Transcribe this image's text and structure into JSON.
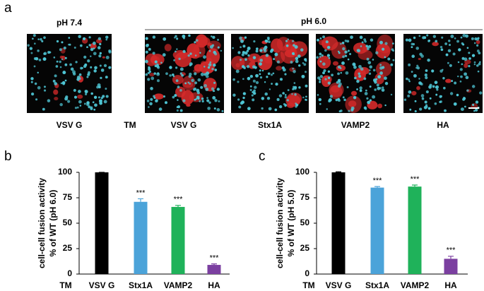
{
  "panel_a": {
    "label": "a",
    "condition_left": "pH 7.4",
    "condition_right": "pH 6.0",
    "row_label": "TM",
    "images": [
      "VSV G",
      "VSV G",
      "Stx1A",
      "VAMP2",
      "HA"
    ]
  },
  "chart_data": [
    {
      "type": "bar",
      "panel_label": "b",
      "ylabel": [
        "cell-cell fusion activity",
        "% of WT (pH 6.0)"
      ],
      "row_label": "TM",
      "categories": [
        "VSV G",
        "Stx1A",
        "VAMP2",
        "HA"
      ],
      "values": [
        100,
        71,
        66,
        9
      ],
      "errors": [
        0,
        3,
        1.5,
        1
      ],
      "annotations": [
        null,
        "***",
        "***",
        "***"
      ],
      "colors": [
        "#000000",
        "#4ba3d9",
        "#1fb25a",
        "#7b3fa0"
      ],
      "ylim": [
        0,
        100
      ],
      "yticks": [
        0,
        25,
        50,
        75,
        100
      ]
    },
    {
      "type": "bar",
      "panel_label": "c",
      "ylabel": [
        "cell-cell fusion activity",
        "% of WT (pH 5.0)"
      ],
      "row_label": "TM",
      "categories": [
        "VSV G",
        "Stx1A",
        "VAMP2",
        "HA"
      ],
      "values": [
        100,
        85,
        86,
        15
      ],
      "errors": [
        0.5,
        1,
        1.5,
        2.5
      ],
      "annotations": [
        null,
        "***",
        "***",
        "***"
      ],
      "colors": [
        "#000000",
        "#4ba3d9",
        "#1fb25a",
        "#7b3fa0"
      ],
      "ylim": [
        0,
        100
      ],
      "yticks": [
        0,
        25,
        50,
        75,
        100
      ]
    }
  ]
}
